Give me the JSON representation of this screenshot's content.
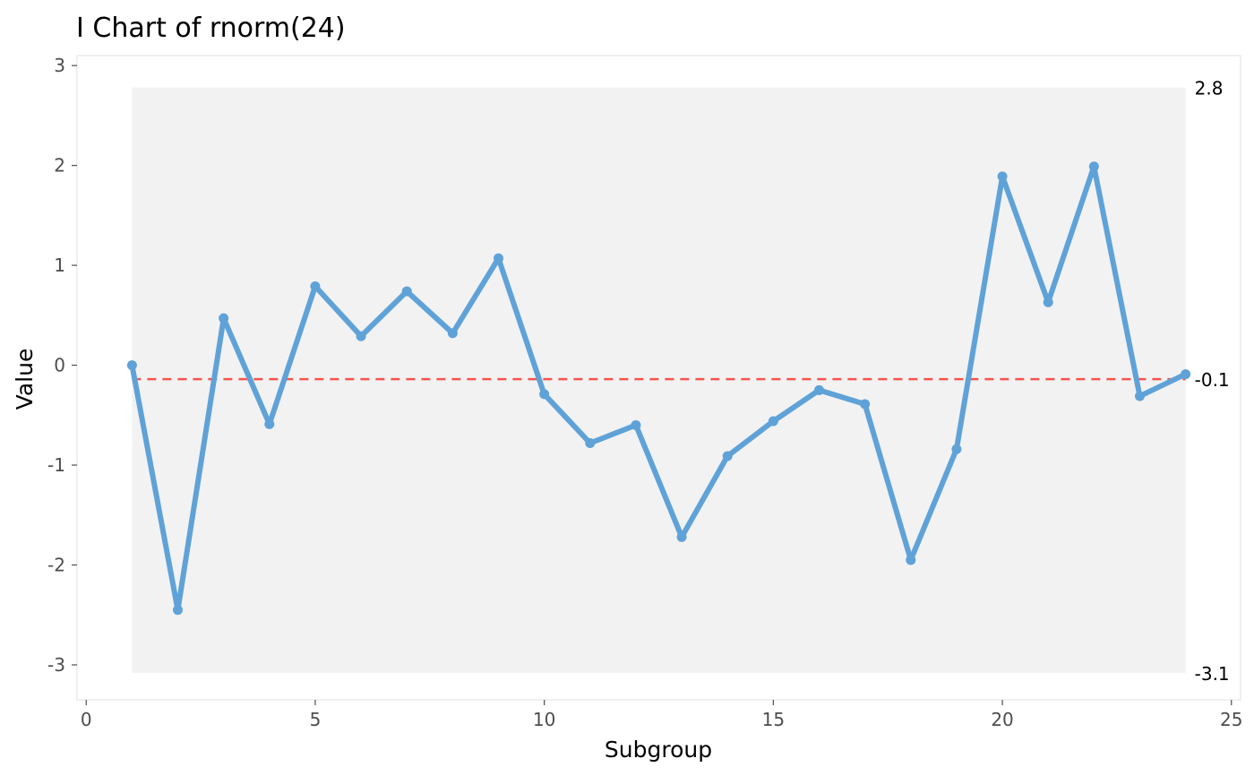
{
  "chart_data": {
    "type": "line",
    "title": "I Chart of rnorm(24)",
    "xlabel": "Subgroup",
    "ylabel": "Value",
    "xlim": [
      -0.2,
      25.2
    ],
    "ylim": [
      -3.35,
      3.1
    ],
    "x_ticks": [
      0,
      5,
      10,
      15,
      20,
      25
    ],
    "y_ticks": [
      -3,
      -2,
      -1,
      0,
      1,
      2,
      3
    ],
    "x": [
      1,
      2,
      3,
      4,
      5,
      6,
      7,
      8,
      9,
      10,
      11,
      12,
      13,
      14,
      15,
      16,
      17,
      18,
      19,
      20,
      21,
      22,
      23,
      24
    ],
    "values": [
      0.0,
      -2.45,
      0.47,
      -0.59,
      0.79,
      0.29,
      0.74,
      0.32,
      1.07,
      -0.29,
      -0.78,
      -0.6,
      -1.72,
      -0.91,
      -0.56,
      -0.25,
      -0.39,
      -1.95,
      -0.84,
      1.89,
      0.63,
      1.99,
      -0.31,
      -0.09
    ],
    "center_line": -0.14,
    "upper_limit": 2.78,
    "lower_limit": -3.08,
    "limit_labels": {
      "upper": "2.8",
      "center": "-0.1",
      "lower": "-3.1"
    },
    "grid": false,
    "colors": {
      "line": "#5fa2d8",
      "center": "#f8544c",
      "band": "#f2f2f2",
      "axis": "#ebebeb"
    }
  }
}
